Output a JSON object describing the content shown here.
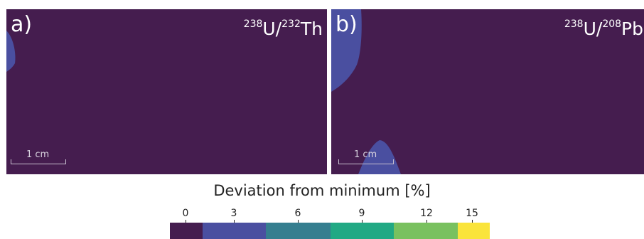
{
  "panels": [
    {
      "label": "a)",
      "isotope1": "238",
      "element1": "U",
      "isotope2": "232",
      "element2": "Th",
      "scale": "1 cm"
    },
    {
      "label": "b)",
      "isotope1": "238",
      "element1": "U",
      "isotope2": "208",
      "element2": "Pb",
      "scale": "1 cm"
    }
  ],
  "colorbar": {
    "title": "Deviation from minimum [%]",
    "ticks": [
      "0",
      "3",
      "6",
      "9",
      "12",
      "15"
    ],
    "colors": [
      "#451d4f",
      "#4a4fa0",
      "#357e8f",
      "#21a984",
      "#79c15f",
      "#fae43b"
    ]
  },
  "colors": {
    "background": "#451d4f",
    "region": "#4a4fa0"
  }
}
